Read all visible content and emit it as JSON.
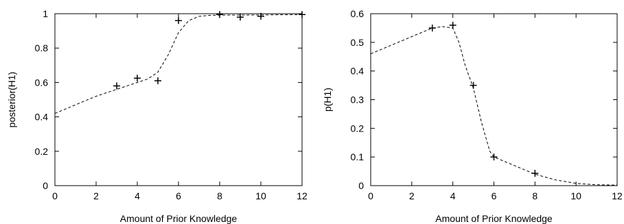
{
  "chart_data": [
    {
      "type": "line",
      "title": "",
      "xlabel": "Amount of Prior Knowledge",
      "ylabel": "posterior(H1)",
      "xlim": [
        0,
        12
      ],
      "ylim": [
        0,
        1
      ],
      "xticks": [
        "0",
        "2",
        "4",
        "6",
        "8",
        "10",
        "12"
      ],
      "yticks": [
        "0",
        "0.2",
        "0.4",
        "0.6",
        "0.8",
        "1"
      ],
      "xtick_values": [
        0,
        2,
        4,
        6,
        8,
        10,
        12
      ],
      "ytick_values": [
        0,
        0.2,
        0.4,
        0.6,
        0.8,
        1
      ],
      "grid": false,
      "series": [
        {
          "style": "points",
          "marker": "+",
          "x": [
            3,
            4,
            5,
            6,
            8,
            9,
            10,
            12
          ],
          "y": [
            0.58,
            0.625,
            0.61,
            0.96,
            0.995,
            0.98,
            0.985,
            0.995
          ]
        },
        {
          "style": "dashed",
          "x": [
            0,
            1,
            2,
            3,
            3.5,
            4,
            4.5,
            5,
            5.5,
            6,
            6.5,
            7,
            7.5,
            8,
            9,
            10,
            11,
            12
          ],
          "y": [
            0.42,
            0.47,
            0.52,
            0.56,
            0.58,
            0.6,
            0.62,
            0.66,
            0.76,
            0.89,
            0.96,
            0.985,
            0.99,
            0.992,
            0.992,
            0.993,
            0.994,
            0.995
          ]
        }
      ]
    },
    {
      "type": "line",
      "title": "",
      "xlabel": "Amount of Prior Knowledge",
      "ylabel": "p(H1)",
      "xlim": [
        0,
        12
      ],
      "ylim": [
        0,
        0.6
      ],
      "xticks": [
        "0",
        "2",
        "4",
        "6",
        "8",
        "10",
        "12"
      ],
      "yticks": [
        "0",
        "0.1",
        "0.2",
        "0.3",
        "0.4",
        "0.5",
        "0.6"
      ],
      "xtick_values": [
        0,
        2,
        4,
        6,
        8,
        10,
        12
      ],
      "ytick_values": [
        0,
        0.1,
        0.2,
        0.3,
        0.4,
        0.5,
        0.6
      ],
      "grid": false,
      "series": [
        {
          "style": "points",
          "marker": "+",
          "x": [
            3,
            4,
            5,
            6,
            8
          ],
          "y": [
            0.55,
            0.56,
            0.35,
            0.1,
            0.043
          ]
        },
        {
          "style": "dashed",
          "x": [
            0,
            1,
            2,
            3,
            3.5,
            4,
            4.3,
            4.6,
            5,
            5.4,
            5.8,
            6,
            7,
            8,
            9,
            10,
            11,
            12
          ],
          "y": [
            0.46,
            0.49,
            0.52,
            0.55,
            0.555,
            0.55,
            0.5,
            0.42,
            0.34,
            0.22,
            0.12,
            0.1,
            0.07,
            0.04,
            0.02,
            0.008,
            0.003,
            0.002
          ]
        }
      ]
    }
  ]
}
